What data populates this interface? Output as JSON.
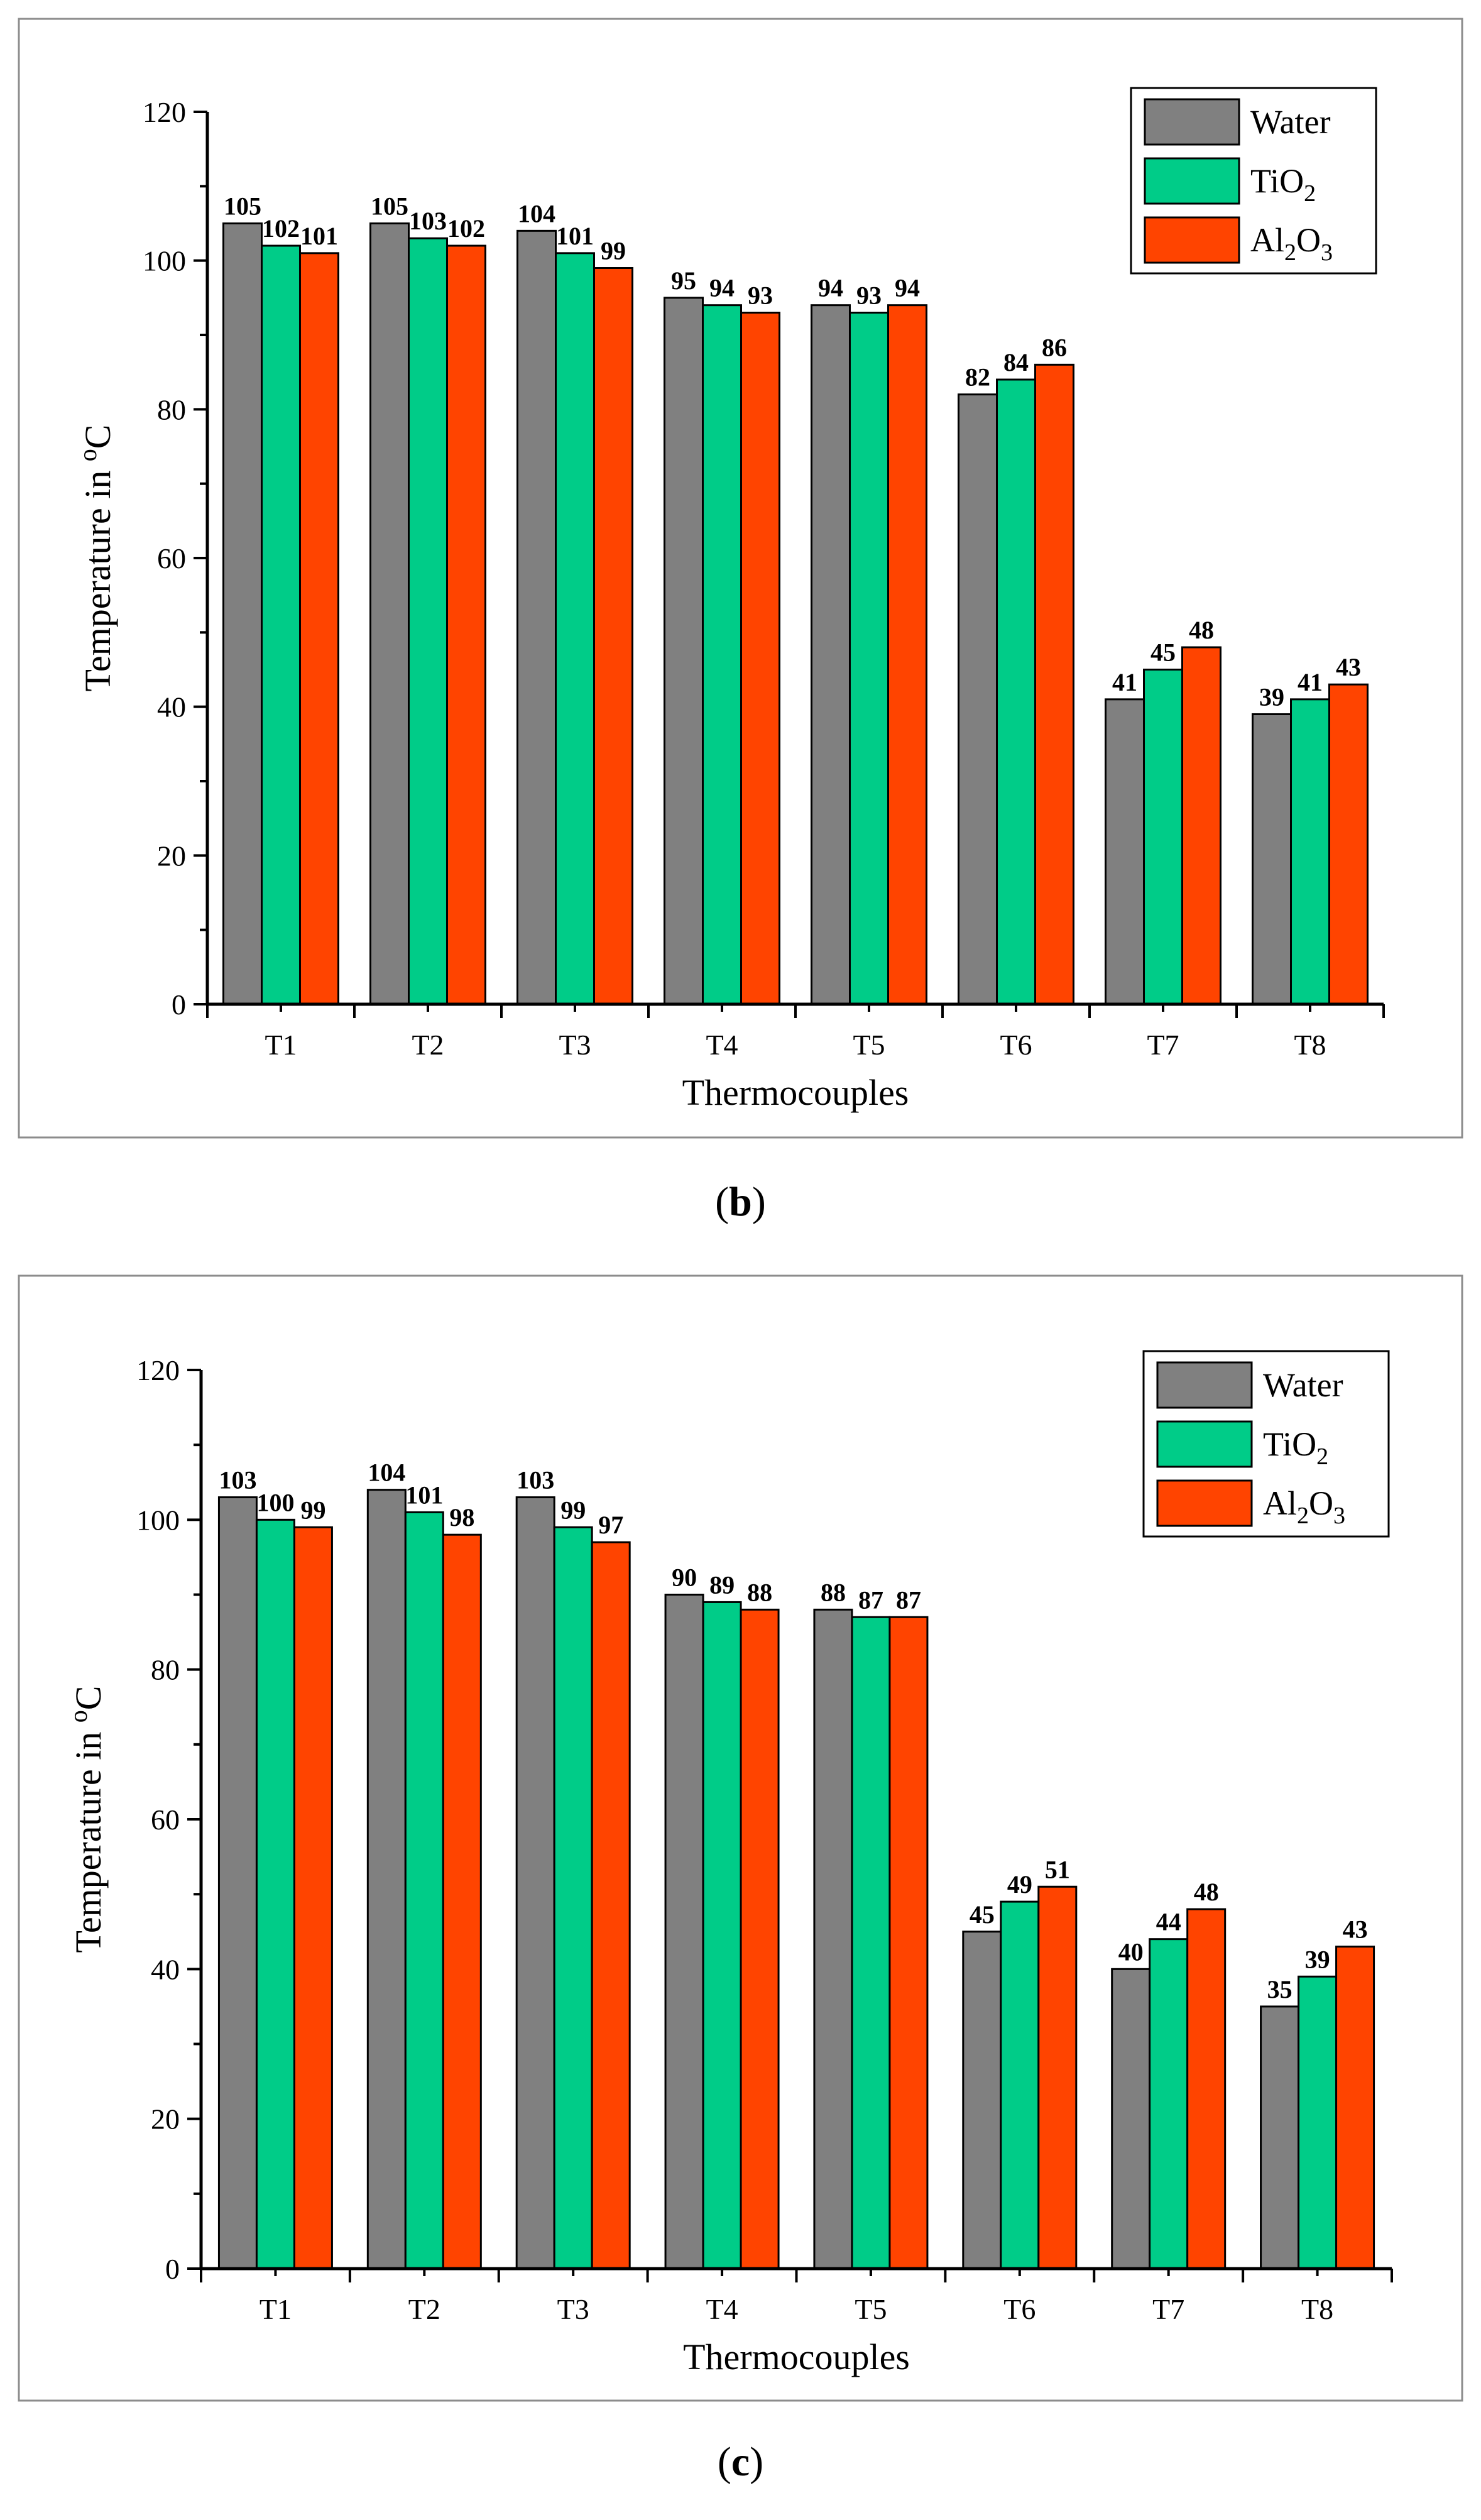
{
  "chart_data": [
    {
      "type": "bar",
      "caption": "(b)",
      "caption_letter": "b",
      "categories": [
        "T1",
        "T2",
        "T3",
        "T4",
        "T5",
        "T6",
        "T7",
        "T8"
      ],
      "series": [
        {
          "name": "Water",
          "color": "#808080",
          "values": [
            105,
            105,
            104,
            95,
            94,
            82,
            41,
            39
          ]
        },
        {
          "name": "TiO2",
          "label_base": "TiO",
          "label_sub": "2",
          "color": "#00CC88",
          "values": [
            102,
            103,
            101,
            94,
            93,
            84,
            45,
            41
          ]
        },
        {
          "name": "Al2O3",
          "label_parts": [
            "Al",
            "2",
            "O",
            "3"
          ],
          "color": "#FF4400",
          "values": [
            101,
            102,
            99,
            93,
            94,
            86,
            48,
            43
          ]
        }
      ],
      "data_labels": [
        [
          "105",
          "105",
          "104",
          "95",
          "94",
          "82",
          "41",
          "39"
        ],
        [
          "102",
          "103",
          "101",
          "94",
          "93",
          "84",
          "45",
          "41"
        ],
        [
          "101",
          "102",
          "99",
          "93",
          "94",
          "86",
          "48",
          "43"
        ]
      ],
      "xlabel": "Thermocouples",
      "ylabel_text": "Temperature in ",
      "ylabel_sup": "o",
      "ylabel_unit": "C",
      "ylim": [
        0,
        120
      ],
      "yticks": [
        "0",
        "20",
        "40",
        "60",
        "80",
        "100",
        "120"
      ],
      "legend_position": "top-right"
    },
    {
      "type": "bar",
      "caption": "(c)",
      "caption_letter": "c",
      "categories": [
        "T1",
        "T2",
        "T3",
        "T4",
        "T5",
        "T6",
        "T7",
        "T8"
      ],
      "series": [
        {
          "name": "Water",
          "color": "#808080",
          "values": [
            103,
            104,
            103,
            90,
            88,
            45,
            40,
            35
          ]
        },
        {
          "name": "TiO2",
          "label_base": "TiO",
          "label_sub": "2",
          "color": "#00CC88",
          "values": [
            100,
            101,
            99,
            89,
            87,
            49,
            44,
            39
          ]
        },
        {
          "name": "Al2O3",
          "label_parts": [
            "Al",
            "2",
            "O",
            "3"
          ],
          "color": "#FF4400",
          "values": [
            99,
            98,
            97,
            88,
            87,
            51,
            48,
            43
          ]
        }
      ],
      "data_labels": [
        [
          "103",
          "104",
          "103",
          "90",
          "88",
          "45",
          "40",
          "35"
        ],
        [
          "100",
          "101",
          "99",
          "89",
          "87",
          "49",
          "44",
          "39"
        ],
        [
          "99",
          "98",
          "97",
          "88",
          "87",
          "51",
          "48",
          "43"
        ]
      ],
      "xlabel": "Thermocouples",
      "ylabel_text": "Temperature in ",
      "ylabel_sup": "o",
      "ylabel_unit": "C",
      "ylim": [
        0,
        120
      ],
      "yticks": [
        "0",
        "20",
        "40",
        "60",
        "80",
        "100",
        "120"
      ],
      "legend_position": "top-right"
    }
  ]
}
